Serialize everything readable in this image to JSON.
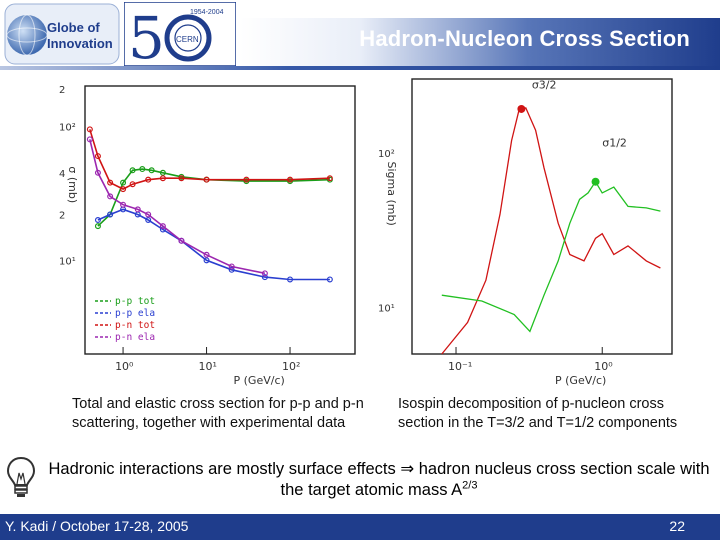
{
  "header": {
    "title": "Hadron-Nucleon Cross Section",
    "logo_left_line1": "Globe of",
    "logo_left_line2": "Innovation",
    "logo_cern_years": "1954-2004",
    "logo_cern_text": "CERN"
  },
  "chart_data": [
    {
      "type": "line",
      "title": "",
      "xlabel": "P (GeV/c)",
      "ylabel": "σ (mb)",
      "x_scale": "log",
      "y_scale": "log",
      "xlim": [
        0.35,
        600
      ],
      "ylim": [
        2,
        200
      ],
      "x_ticks": [
        "10⁰",
        "10¹",
        "10²"
      ],
      "y_ticks": [
        "2",
        "10²",
        "4",
        "2",
        "10¹"
      ],
      "legend": [
        "p-p tot",
        "p-p ela",
        "p-n tot",
        "p-n ela"
      ],
      "series": [
        {
          "name": "p-p tot",
          "color": "#1a9e1a",
          "x": [
            0.5,
            0.7,
            1,
            1.3,
            1.7,
            2.2,
            3,
            5,
            10,
            30,
            100,
            300
          ],
          "y": [
            18,
            22,
            38,
            47,
            48,
            47,
            45,
            42,
            40,
            39,
            39,
            40
          ]
        },
        {
          "name": "p-p ela",
          "color": "#2a3fd0",
          "x": [
            0.5,
            0.7,
            1,
            1.5,
            2,
            3,
            5,
            10,
            20,
            50,
            100,
            300
          ],
          "y": [
            20,
            22,
            24,
            22,
            20,
            17,
            14,
            10,
            8.5,
            7.5,
            7.2,
            7.2
          ]
        },
        {
          "name": "p-n tot",
          "color": "#d01414",
          "x": [
            0.4,
            0.5,
            0.7,
            1,
            1.3,
            2,
            3,
            5,
            10,
            30,
            100,
            300
          ],
          "y": [
            95,
            60,
            38,
            34,
            37,
            40,
            41,
            41,
            40,
            40,
            40,
            41
          ]
        },
        {
          "name": "p-n ela",
          "color": "#9c27b0",
          "x": [
            0.4,
            0.5,
            0.7,
            1,
            1.5,
            2,
            3,
            5,
            10,
            20,
            50
          ],
          "y": [
            80,
            45,
            30,
            26,
            24,
            22,
            18,
            14,
            11,
            9,
            8
          ]
        }
      ]
    },
    {
      "type": "line",
      "title": "",
      "xlabel": "P (GeV/c)",
      "ylabel": "Sigma (mb)",
      "x_scale": "log",
      "y_scale": "log",
      "xlim": [
        0.05,
        3
      ],
      "ylim": [
        5,
        300
      ],
      "x_ticks": [
        "10⁻¹",
        "10⁰"
      ],
      "y_ticks": [
        "10²",
        "10¹"
      ],
      "series": [
        {
          "name": "σ3/2",
          "color": "#d01414",
          "x": [
            0.08,
            0.12,
            0.16,
            0.2,
            0.24,
            0.27,
            0.3,
            0.35,
            0.4,
            0.5,
            0.6,
            0.75,
            0.9,
            1.0,
            1.2,
            1.5,
            2.0,
            2.5
          ],
          "y": [
            5,
            8,
            15,
            40,
            120,
            190,
            195,
            140,
            80,
            35,
            22,
            20,
            28,
            30,
            22,
            25,
            20,
            18
          ]
        },
        {
          "name": "σ1/2",
          "color": "#22c022",
          "x": [
            0.08,
            0.15,
            0.25,
            0.32,
            0.4,
            0.5,
            0.6,
            0.7,
            0.8,
            0.9,
            1.0,
            1.2,
            1.5,
            2.0,
            2.5
          ],
          "y": [
            12,
            11,
            9,
            7,
            12,
            20,
            35,
            50,
            55,
            65,
            55,
            60,
            45,
            44,
            42
          ]
        }
      ],
      "annotations": [
        "σ3/2",
        "σ1/2"
      ]
    }
  ],
  "captions": {
    "left": "Total and elastic cross section for p-p and p-n scattering, together with experimental data",
    "right": "Isospin decomposition of p-nucleon cross section in the T=3/2 and T=1/2 components"
  },
  "statement": {
    "text_before": "Hadronic interactions are mostly surface effects ⇒ hadron nucleus cross section scale with the target atomic mass A",
    "exponent": "2/3"
  },
  "footer": {
    "author_date": "Y. Kadi / October 17-28, 2005",
    "page": "22"
  },
  "colors": {
    "brand_blue": "#1f3d8c",
    "red": "#d01414",
    "green": "#22c022",
    "blue": "#2a3fd0"
  }
}
